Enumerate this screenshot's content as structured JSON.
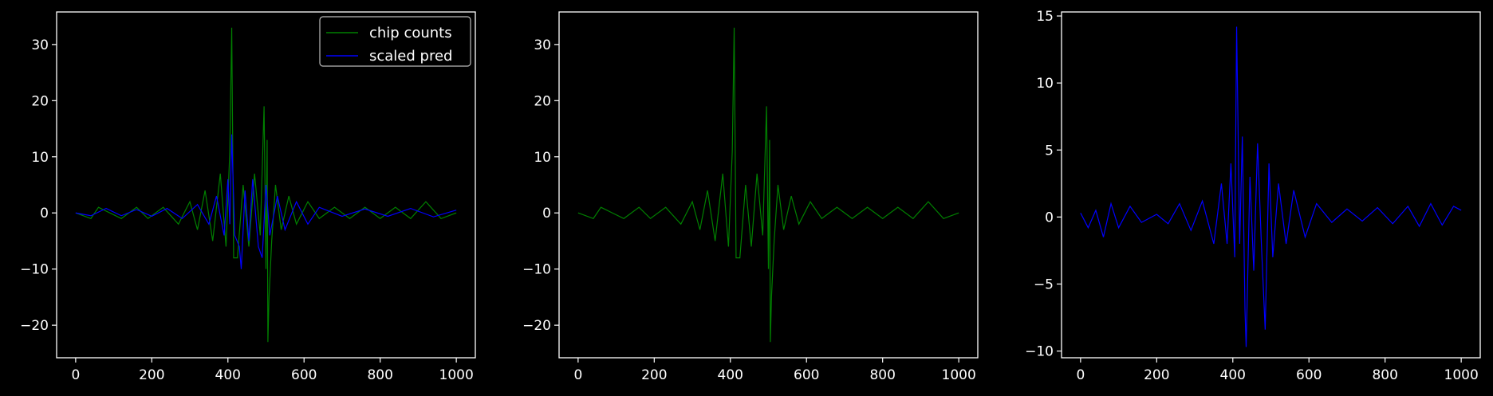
{
  "chart_data": [
    {
      "type": "line",
      "title": "",
      "xlabel": "",
      "ylabel": "",
      "xlim": [
        -50,
        1050
      ],
      "ylim": [
        -25.8,
        35.8
      ],
      "xticks": [
        0,
        200,
        400,
        600,
        800,
        1000
      ],
      "yticks": [
        -20,
        -10,
        0,
        10,
        20,
        30
      ],
      "legend": "upper-right",
      "series": [
        {
          "name": "chip counts",
          "color": "#008000",
          "points": [
            [
              0,
              0
            ],
            [
              40,
              -1
            ],
            [
              60,
              1
            ],
            [
              120,
              -1
            ],
            [
              160,
              1
            ],
            [
              190,
              -1
            ],
            [
              230,
              1
            ],
            [
              270,
              -2
            ],
            [
              300,
              2
            ],
            [
              320,
              -3
            ],
            [
              340,
              4
            ],
            [
              360,
              -5
            ],
            [
              380,
              7
            ],
            [
              395,
              -6
            ],
            [
              405,
              11
            ],
            [
              410,
              33
            ],
            [
              415,
              -8
            ],
            [
              425,
              -8
            ],
            [
              440,
              5
            ],
            [
              455,
              -6
            ],
            [
              470,
              7
            ],
            [
              485,
              -4
            ],
            [
              495,
              19
            ],
            [
              500,
              -10
            ],
            [
              503,
              13
            ],
            [
              505,
              -23
            ],
            [
              508,
              -15
            ],
            [
              515,
              -5
            ],
            [
              525,
              5
            ],
            [
              540,
              -3
            ],
            [
              560,
              3
            ],
            [
              580,
              -2
            ],
            [
              610,
              2
            ],
            [
              640,
              -1
            ],
            [
              680,
              1
            ],
            [
              720,
              -1
            ],
            [
              760,
              1
            ],
            [
              800,
              -1
            ],
            [
              840,
              1
            ],
            [
              880,
              -1
            ],
            [
              920,
              2
            ],
            [
              960,
              -1
            ],
            [
              1000,
              0
            ]
          ]
        },
        {
          "name": "scaled pred",
          "color": "#0000ff",
          "points": [
            [
              0,
              0
            ],
            [
              40,
              -0.5
            ],
            [
              80,
              0.8
            ],
            [
              120,
              -0.5
            ],
            [
              160,
              0.6
            ],
            [
              200,
              -0.6
            ],
            [
              240,
              0.8
            ],
            [
              280,
              -1
            ],
            [
              320,
              1.5
            ],
            [
              350,
              -2
            ],
            [
              370,
              3
            ],
            [
              390,
              -4
            ],
            [
              400,
              6
            ],
            [
              405,
              -2
            ],
            [
              410,
              14
            ],
            [
              418,
              -4
            ],
            [
              430,
              -6
            ],
            [
              435,
              -10
            ],
            [
              445,
              4
            ],
            [
              455,
              -5
            ],
            [
              465,
              6
            ],
            [
              480,
              -6
            ],
            [
              490,
              -8
            ],
            [
              500,
              5
            ],
            [
              510,
              -4
            ],
            [
              530,
              3
            ],
            [
              550,
              -3
            ],
            [
              580,
              2
            ],
            [
              610,
              -2
            ],
            [
              640,
              1
            ],
            [
              700,
              -0.6
            ],
            [
              760,
              0.7
            ],
            [
              820,
              -0.6
            ],
            [
              880,
              0.8
            ],
            [
              940,
              -0.7
            ],
            [
              1000,
              0.5
            ]
          ]
        }
      ]
    },
    {
      "type": "line",
      "title": "",
      "xlabel": "",
      "ylabel": "",
      "xlim": [
        -50,
        1050
      ],
      "ylim": [
        -25.8,
        35.8
      ],
      "xticks": [
        0,
        200,
        400,
        600,
        800,
        1000
      ],
      "yticks": [
        -20,
        -10,
        0,
        10,
        20,
        30
      ],
      "series": [
        {
          "color": "#008000",
          "points": [
            [
              0,
              0
            ],
            [
              40,
              -1
            ],
            [
              60,
              1
            ],
            [
              120,
              -1
            ],
            [
              160,
              1
            ],
            [
              190,
              -1
            ],
            [
              230,
              1
            ],
            [
              270,
              -2
            ],
            [
              300,
              2
            ],
            [
              320,
              -3
            ],
            [
              340,
              4
            ],
            [
              360,
              -5
            ],
            [
              380,
              7
            ],
            [
              395,
              -6
            ],
            [
              405,
              11
            ],
            [
              410,
              33
            ],
            [
              415,
              -8
            ],
            [
              425,
              -8
            ],
            [
              440,
              5
            ],
            [
              455,
              -6
            ],
            [
              470,
              7
            ],
            [
              485,
              -4
            ],
            [
              495,
              19
            ],
            [
              500,
              -10
            ],
            [
              503,
              13
            ],
            [
              505,
              -23
            ],
            [
              508,
              -15
            ],
            [
              515,
              -5
            ],
            [
              525,
              5
            ],
            [
              540,
              -3
            ],
            [
              560,
              3
            ],
            [
              580,
              -2
            ],
            [
              610,
              2
            ],
            [
              640,
              -1
            ],
            [
              680,
              1
            ],
            [
              720,
              -1
            ],
            [
              760,
              1
            ],
            [
              800,
              -1
            ],
            [
              840,
              1
            ],
            [
              880,
              -1
            ],
            [
              920,
              2
            ],
            [
              960,
              -1
            ],
            [
              1000,
              0
            ]
          ]
        }
      ]
    },
    {
      "type": "line",
      "title": "",
      "xlabel": "",
      "ylabel": "",
      "xlim": [
        -50,
        1050
      ],
      "ylim": [
        -10.5,
        15.3
      ],
      "xticks": [
        0,
        200,
        400,
        600,
        800,
        1000
      ],
      "yticks": [
        -10,
        -5,
        0,
        5,
        10,
        15
      ],
      "series": [
        {
          "color": "#0000ff",
          "points": [
            [
              0,
              0.3
            ],
            [
              20,
              -0.8
            ],
            [
              40,
              0.5
            ],
            [
              60,
              -1.5
            ],
            [
              80,
              1
            ],
            [
              100,
              -0.8
            ],
            [
              130,
              0.8
            ],
            [
              160,
              -0.4
            ],
            [
              200,
              0.2
            ],
            [
              230,
              -0.5
            ],
            [
              260,
              1
            ],
            [
              290,
              -1
            ],
            [
              320,
              1.2
            ],
            [
              350,
              -2
            ],
            [
              370,
              2.5
            ],
            [
              385,
              -2
            ],
            [
              395,
              4
            ],
            [
              405,
              -3
            ],
            [
              410,
              14.2
            ],
            [
              418,
              -2
            ],
            [
              425,
              6
            ],
            [
              432,
              -7
            ],
            [
              435,
              -9.7
            ],
            [
              445,
              3
            ],
            [
              455,
              -4
            ],
            [
              465,
              5.5
            ],
            [
              475,
              -2
            ],
            [
              485,
              -8.4
            ],
            [
              495,
              4
            ],
            [
              505,
              -3
            ],
            [
              520,
              2.5
            ],
            [
              540,
              -2
            ],
            [
              560,
              2
            ],
            [
              590,
              -1.5
            ],
            [
              620,
              1
            ],
            [
              660,
              -0.4
            ],
            [
              700,
              0.6
            ],
            [
              740,
              -0.3
            ],
            [
              780,
              0.7
            ],
            [
              820,
              -0.5
            ],
            [
              860,
              0.8
            ],
            [
              890,
              -0.7
            ],
            [
              920,
              1
            ],
            [
              950,
              -0.6
            ],
            [
              980,
              0.8
            ],
            [
              1000,
              0.5
            ]
          ]
        }
      ]
    }
  ]
}
